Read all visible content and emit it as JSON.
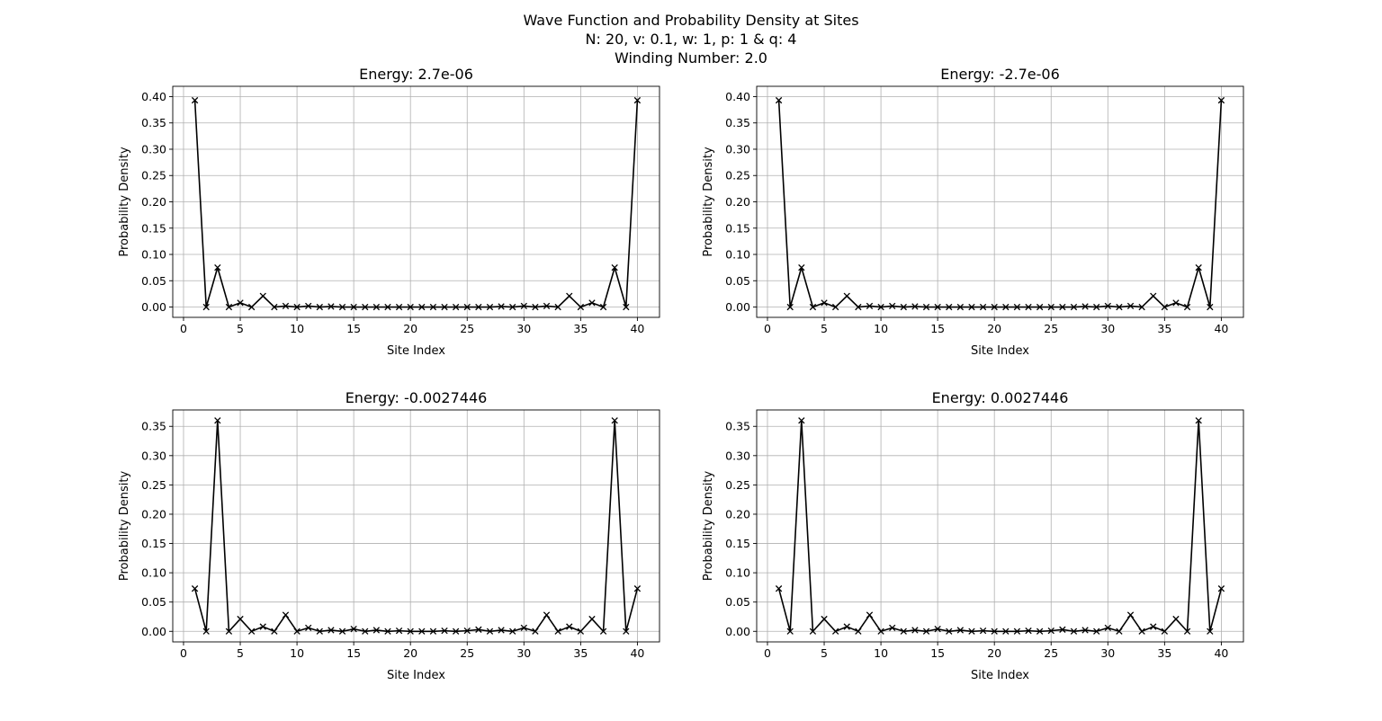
{
  "figure": {
    "title_lines": [
      "Wave Function and Probability Density at Sites",
      "N: 20, v: 0.1, w: 1, p: 1 & q: 4",
      "Winding Number: 2.0"
    ],
    "line_color": "#000000",
    "grid_color": "#b0b0b0"
  },
  "chart_data": [
    {
      "type": "line",
      "title": "Energy: 2.7e-06",
      "xlabel": "Site Index",
      "ylabel": "Probability Density",
      "xlim": [
        -0.95,
        41.95
      ],
      "ylim": [
        -0.0196,
        0.4196
      ],
      "xticks": [
        0,
        5,
        10,
        15,
        20,
        25,
        30,
        35,
        40
      ],
      "yticks": [
        0.0,
        0.05,
        0.1,
        0.15,
        0.2,
        0.25,
        0.3,
        0.35,
        0.4
      ],
      "ytick_labels": [
        "0.00",
        "0.05",
        "0.10",
        "0.15",
        "0.20",
        "0.25",
        "0.30",
        "0.35",
        "0.40"
      ],
      "grid": true,
      "marker": "x",
      "x": [
        1,
        2,
        3,
        4,
        5,
        6,
        7,
        8,
        9,
        10,
        11,
        12,
        13,
        14,
        15,
        16,
        17,
        18,
        19,
        20,
        21,
        22,
        23,
        24,
        25,
        26,
        27,
        28,
        29,
        30,
        31,
        32,
        33,
        34,
        35,
        36,
        37,
        38,
        39,
        40
      ],
      "values": [
        0.393,
        0.0,
        0.075,
        0.0,
        0.008,
        0.0,
        0.021,
        0.0,
        0.002,
        0.0,
        0.002,
        0.0,
        0.001,
        0.0,
        0.0,
        0.0,
        0.0,
        0.0,
        0.0,
        0.0,
        0.0,
        0.0,
        0.0,
        0.0,
        0.0,
        0.0,
        0.0,
        0.001,
        0.0,
        0.002,
        0.0,
        0.002,
        0.0,
        0.021,
        0.0,
        0.008,
        0.0,
        0.075,
        0.0,
        0.393
      ]
    },
    {
      "type": "line",
      "title": "Energy: -2.7e-06",
      "xlabel": "Site Index",
      "ylabel": "Probability Density",
      "xlim": [
        -0.95,
        41.95
      ],
      "ylim": [
        -0.0196,
        0.4196
      ],
      "xticks": [
        0,
        5,
        10,
        15,
        20,
        25,
        30,
        35,
        40
      ],
      "yticks": [
        0.0,
        0.05,
        0.1,
        0.15,
        0.2,
        0.25,
        0.3,
        0.35,
        0.4
      ],
      "ytick_labels": [
        "0.00",
        "0.05",
        "0.10",
        "0.15",
        "0.20",
        "0.25",
        "0.30",
        "0.35",
        "0.40"
      ],
      "grid": true,
      "marker": "x",
      "x": [
        1,
        2,
        3,
        4,
        5,
        6,
        7,
        8,
        9,
        10,
        11,
        12,
        13,
        14,
        15,
        16,
        17,
        18,
        19,
        20,
        21,
        22,
        23,
        24,
        25,
        26,
        27,
        28,
        29,
        30,
        31,
        32,
        33,
        34,
        35,
        36,
        37,
        38,
        39,
        40
      ],
      "values": [
        0.393,
        0.0,
        0.075,
        0.0,
        0.008,
        0.0,
        0.021,
        0.0,
        0.002,
        0.0,
        0.002,
        0.0,
        0.001,
        0.0,
        0.0,
        0.0,
        0.0,
        0.0,
        0.0,
        0.0,
        0.0,
        0.0,
        0.0,
        0.0,
        0.0,
        0.0,
        0.0,
        0.001,
        0.0,
        0.002,
        0.0,
        0.002,
        0.0,
        0.021,
        0.0,
        0.008,
        0.0,
        0.075,
        0.0,
        0.393
      ]
    },
    {
      "type": "line",
      "title": "Energy: -0.0027446",
      "xlabel": "Site Index",
      "ylabel": "Probability Density",
      "xlim": [
        -0.95,
        41.95
      ],
      "ylim": [
        -0.018,
        0.378
      ],
      "xticks": [
        0,
        5,
        10,
        15,
        20,
        25,
        30,
        35,
        40
      ],
      "yticks": [
        0.0,
        0.05,
        0.1,
        0.15,
        0.2,
        0.25,
        0.3,
        0.35
      ],
      "ytick_labels": [
        "0.00",
        "0.05",
        "0.10",
        "0.15",
        "0.20",
        "0.25",
        "0.30",
        "0.35"
      ],
      "grid": true,
      "marker": "x",
      "x": [
        1,
        2,
        3,
        4,
        5,
        6,
        7,
        8,
        9,
        10,
        11,
        12,
        13,
        14,
        15,
        16,
        17,
        18,
        19,
        20,
        21,
        22,
        23,
        24,
        25,
        26,
        27,
        28,
        29,
        30,
        31,
        32,
        33,
        34,
        35,
        36,
        37,
        38,
        39,
        40
      ],
      "values": [
        0.073,
        0.0,
        0.36,
        0.0,
        0.021,
        0.0,
        0.008,
        0.0,
        0.028,
        0.0,
        0.006,
        0.0,
        0.002,
        0.0,
        0.004,
        0.0,
        0.002,
        0.0,
        0.001,
        0.0,
        0.0,
        0.0,
        0.001,
        0.0,
        0.001,
        0.003,
        0.0,
        0.002,
        0.0,
        0.006,
        0.0,
        0.028,
        0.0,
        0.008,
        0.0,
        0.021,
        0.0,
        0.36,
        0.0,
        0.073
      ]
    },
    {
      "type": "line",
      "title": "Energy: 0.0027446",
      "xlabel": "Site Index",
      "ylabel": "Probability Density",
      "xlim": [
        -0.95,
        41.95
      ],
      "ylim": [
        -0.018,
        0.378
      ],
      "xticks": [
        0,
        5,
        10,
        15,
        20,
        25,
        30,
        35,
        40
      ],
      "yticks": [
        0.0,
        0.05,
        0.1,
        0.15,
        0.2,
        0.25,
        0.3,
        0.35
      ],
      "ytick_labels": [
        "0.00",
        "0.05",
        "0.10",
        "0.15",
        "0.20",
        "0.25",
        "0.30",
        "0.35"
      ],
      "grid": true,
      "marker": "x",
      "x": [
        1,
        2,
        3,
        4,
        5,
        6,
        7,
        8,
        9,
        10,
        11,
        12,
        13,
        14,
        15,
        16,
        17,
        18,
        19,
        20,
        21,
        22,
        23,
        24,
        25,
        26,
        27,
        28,
        29,
        30,
        31,
        32,
        33,
        34,
        35,
        36,
        37,
        38,
        39,
        40
      ],
      "values": [
        0.073,
        0.0,
        0.36,
        0.0,
        0.021,
        0.0,
        0.008,
        0.0,
        0.028,
        0.0,
        0.006,
        0.0,
        0.002,
        0.0,
        0.004,
        0.0,
        0.002,
        0.0,
        0.001,
        0.0,
        0.0,
        0.0,
        0.001,
        0.0,
        0.001,
        0.003,
        0.0,
        0.002,
        0.0,
        0.006,
        0.0,
        0.028,
        0.0,
        0.008,
        0.0,
        0.021,
        0.0,
        0.36,
        0.0,
        0.073
      ]
    }
  ]
}
